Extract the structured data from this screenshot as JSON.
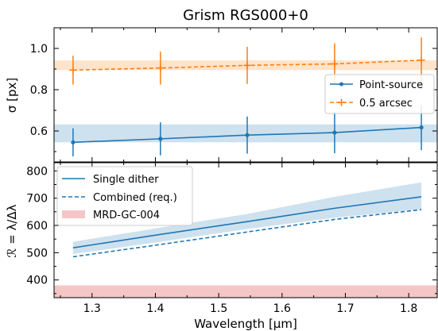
{
  "chart_data": [
    {
      "type": "line",
      "title": "Grism RGS000+0",
      "xlabel": "",
      "ylabel": "σ [px]",
      "xlim": [
        1.24,
        1.845
      ],
      "ylim": [
        0.45,
        1.1
      ],
      "yticks": [
        0.6,
        0.8,
        1.0
      ],
      "yticklabels": [
        "0.6",
        "0.8",
        "1.0"
      ],
      "x": [
        1.27,
        1.408,
        1.545,
        1.683,
        1.82
      ],
      "legend_position": "center-right",
      "series": [
        {
          "name": "Point-source",
          "color": "#1f77b4",
          "style": "solid",
          "marker": "circle",
          "values": [
            0.545,
            0.562,
            0.58,
            0.592,
            0.617
          ],
          "yerr": [
            0.068,
            0.08,
            0.09,
            0.1,
            0.11
          ],
          "band": [
            0.545,
            0.632
          ]
        },
        {
          "name": "0.5 arcsec",
          "color": "#ff7f0e",
          "style": "dashed",
          "marker": "plus",
          "values": [
            0.895,
            0.905,
            0.918,
            0.925,
            0.943
          ],
          "yerr": [
            0.07,
            0.08,
            0.09,
            0.1,
            0.11
          ],
          "band": [
            0.895,
            0.942
          ]
        }
      ]
    },
    {
      "type": "line",
      "title": "",
      "xlabel": "Wavelength [μm]",
      "ylabel": "ℛ = λ/Δλ",
      "xlim": [
        1.24,
        1.845
      ],
      "ylim": [
        335,
        830
      ],
      "xticks": [
        1.3,
        1.4,
        1.5,
        1.6,
        1.7,
        1.8
      ],
      "xticklabels": [
        "1.3",
        "1.4",
        "1.5",
        "1.6",
        "1.7",
        "1.8"
      ],
      "yticks": [
        400,
        500,
        600,
        700,
        800
      ],
      "yticklabels": [
        "400",
        "500",
        "600",
        "700",
        "800"
      ],
      "legend_position": "top-left",
      "series": [
        {
          "name": "Single dither",
          "color": "#1f77b4",
          "style": "solid",
          "x": [
            1.27,
            1.408,
            1.545,
            1.683,
            1.82
          ],
          "values": [
            518,
            567,
            614,
            663,
            705
          ],
          "band_low": [
            495,
            540,
            587,
            628,
            660
          ],
          "band_high": [
            540,
            592,
            642,
            705,
            758
          ]
        },
        {
          "name": "Combined (req.)",
          "color": "#1f77b4",
          "style": "dashed",
          "x": [
            1.27,
            1.408,
            1.545,
            1.683,
            1.82
          ],
          "values": [
            485,
            530,
            576,
            622,
            658
          ]
        },
        {
          "name": "MRD-GC-004",
          "color": "#f4c6c6",
          "style": "band",
          "values": [
            335,
            380
          ]
        }
      ]
    }
  ]
}
